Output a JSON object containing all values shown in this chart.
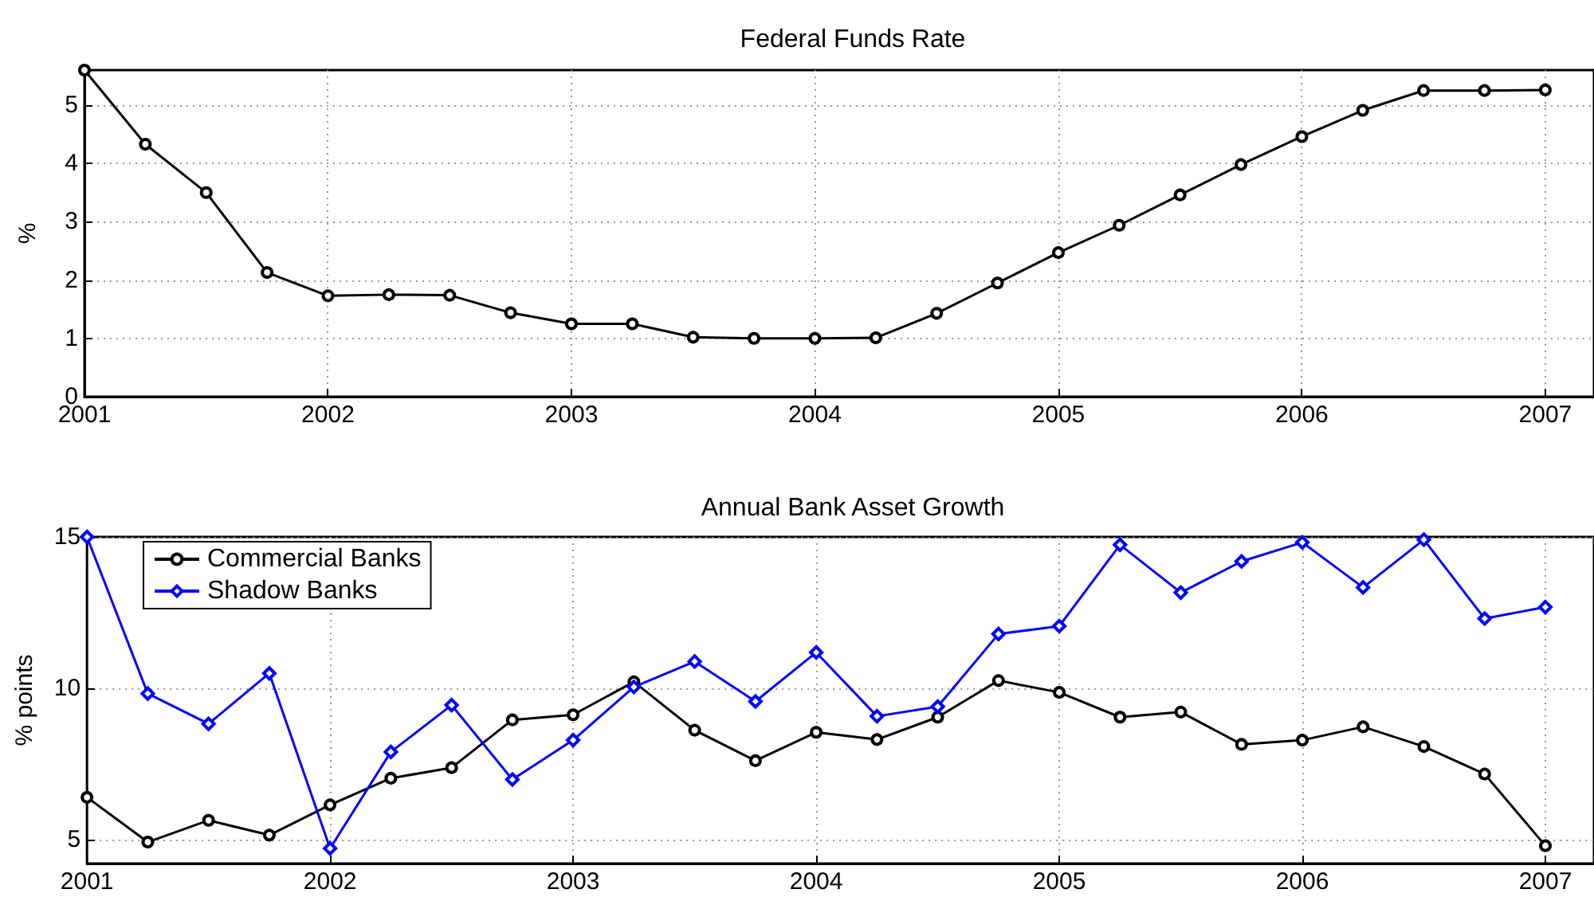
{
  "chart_data": [
    {
      "type": "line",
      "title": "Federal Funds Rate",
      "ylabel": "%",
      "x": [
        2001,
        2001.25,
        2001.5,
        2001.75,
        2002,
        2002.25,
        2002.5,
        2002.75,
        2003,
        2003.25,
        2003.5,
        2003.75,
        2004,
        2004.25,
        2004.5,
        2004.75,
        2005,
        2005.25,
        2005.5,
        2005.75,
        2006,
        2006.25,
        2006.5,
        2006.75,
        2007
      ],
      "series": [
        {
          "color": "#000000",
          "marker": "circle",
          "values": [
            5.6,
            4.33,
            3.5,
            2.13,
            1.73,
            1.75,
            1.74,
            1.44,
            1.25,
            1.25,
            1.02,
            1.0,
            1.0,
            1.01,
            1.43,
            1.95,
            2.47,
            2.94,
            3.46,
            3.98,
            4.46,
            4.91,
            5.25,
            5.25,
            5.26
          ]
        }
      ],
      "xlim": [
        2001,
        2007.2
      ],
      "xticks": [
        2001,
        2002,
        2003,
        2004,
        2005,
        2006,
        2007
      ],
      "ylim": [
        0,
        5.6
      ],
      "yticks": [
        0,
        1,
        2,
        3,
        4,
        5
      ],
      "grid": true,
      "legend": false
    },
    {
      "type": "line",
      "title": "Annual Bank Asset Growth",
      "ylabel": "% points",
      "x": [
        2001,
        2001.25,
        2001.5,
        2001.75,
        2002,
        2002.25,
        2002.5,
        2002.75,
        2003,
        2003.25,
        2003.5,
        2003.75,
        2004,
        2004.25,
        2004.5,
        2004.75,
        2005,
        2005.25,
        2005.5,
        2005.75,
        2006,
        2006.25,
        2006.5,
        2006.75,
        2007
      ],
      "series": [
        {
          "name": "Commercial Banks",
          "color": "#000000",
          "marker": "circle",
          "values": [
            6.39,
            4.91,
            5.63,
            5.14,
            6.14,
            7.02,
            7.37,
            8.95,
            9.12,
            10.21,
            8.61,
            7.6,
            8.54,
            8.3,
            9.04,
            10.25,
            9.86,
            9.04,
            9.21,
            8.14,
            8.28,
            8.72,
            8.07,
            7.16,
            4.79
          ]
        },
        {
          "name": "Shadow Banks",
          "color": "#0000ff",
          "marker": "diamond",
          "values": [
            15.0,
            9.82,
            8.82,
            10.49,
            4.7,
            7.89,
            9.44,
            6.98,
            8.28,
            10.04,
            10.88,
            9.56,
            11.18,
            9.07,
            9.39,
            11.79,
            12.05,
            14.74,
            13.16,
            14.19,
            14.82,
            13.33,
            14.91,
            12.3,
            12.68
          ]
        }
      ],
      "xlim": [
        2001,
        2007.2
      ],
      "xticks": [
        2001,
        2002,
        2003,
        2004,
        2005,
        2006,
        2007
      ],
      "ylim": [
        4.2,
        15
      ],
      "yticks": [
        5,
        10,
        15
      ],
      "grid": true,
      "legend": "top left"
    }
  ]
}
